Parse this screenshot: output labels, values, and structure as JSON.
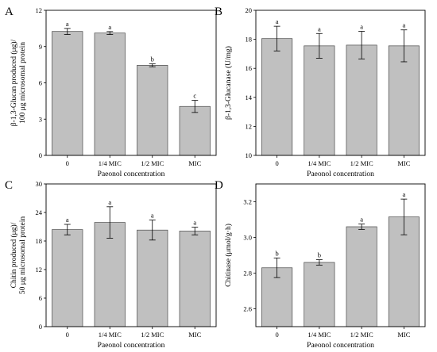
{
  "chart_data": [
    {
      "panel": "A",
      "type": "bar",
      "categories": [
        "0",
        "1/4 MIC",
        "1/2 MIC",
        "MIC"
      ],
      "values": [
        10.25,
        10.12,
        7.45,
        4.05
      ],
      "errors": [
        0.25,
        0.12,
        0.12,
        0.5
      ],
      "significance": [
        "a",
        "a",
        "b",
        "c"
      ],
      "xlabel": "Paeonol concentration",
      "ylabel": "β-1,3-Glucan produced (μg)/100 μg microsomal protein",
      "ylim": [
        0,
        12
      ],
      "yticks": [
        "0",
        "3",
        "6",
        "9",
        "12"
      ],
      "bar_color": "#c0c0c0"
    },
    {
      "panel": "B",
      "type": "bar",
      "categories": [
        "0",
        "1/4 MIC",
        "1/2 MIC",
        "MIC"
      ],
      "values": [
        18.05,
        17.55,
        17.6,
        17.55
      ],
      "errors": [
        0.85,
        0.85,
        0.95,
        1.1
      ],
      "significance": [
        "a",
        "a",
        "a",
        "a"
      ],
      "xlabel": "Paeonol concentration",
      "ylabel": "β-1,3-Glucanase (U/mg)",
      "ylim": [
        10,
        20
      ],
      "yticks": [
        "10",
        "12",
        "14",
        "16",
        "18",
        "20"
      ],
      "bar_color": "#c0c0c0"
    },
    {
      "panel": "C",
      "type": "bar",
      "categories": [
        "0",
        "1/4 MIC",
        "1/2 MIC",
        "MIC"
      ],
      "values": [
        20.4,
        21.9,
        20.3,
        20.1
      ],
      "errors": [
        1.1,
        3.3,
        2.1,
        0.8
      ],
      "significance": [
        "a",
        "a",
        "a",
        "a"
      ],
      "xlabel": "Paeonol concentration",
      "ylabel": "Chitin produced (μg)/50 μg microsomal protein",
      "ylim": [
        0,
        30
      ],
      "yticks": [
        "0",
        "6",
        "12",
        "18",
        "24",
        "30"
      ],
      "bar_color": "#c0c0c0"
    },
    {
      "panel": "D",
      "type": "bar",
      "categories": [
        "0",
        "1/4 MIC",
        "1/2 MIC",
        "MIC"
      ],
      "values": [
        2.83,
        2.86,
        3.06,
        3.115
      ],
      "errors": [
        0.055,
        0.015,
        0.015,
        0.1
      ],
      "significance": [
        "b",
        "b",
        "a",
        "a"
      ],
      "xlabel": "Paeonol concentration",
      "ylabel": "Chitinase (μmol/g·h)",
      "ylim": [
        2.5,
        3.3
      ],
      "yticks": [
        "2.6",
        "2.8",
        "3.0",
        "3.2"
      ],
      "bar_color": "#c0c0c0"
    }
  ]
}
